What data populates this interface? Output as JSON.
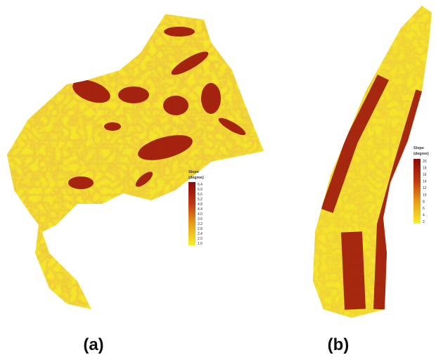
{
  "panels": [
    {
      "label": "(a)",
      "legend": {
        "title": "Slope",
        "unit": "(degree)",
        "ticks": [
          "6.4",
          "6.0",
          "5.6",
          "5.2",
          "4.8",
          "4.4",
          "4.0",
          "3.6",
          "3.2",
          "2.8",
          "2.4",
          "2.0",
          "1.6"
        ]
      }
    },
    {
      "label": "(b)",
      "legend": {
        "title": "Slope",
        "unit": "(degree)",
        "ticks": [
          "20",
          "18",
          "16",
          "14",
          "12",
          "10",
          "8",
          "6",
          "4",
          "2"
        ]
      }
    }
  ]
}
